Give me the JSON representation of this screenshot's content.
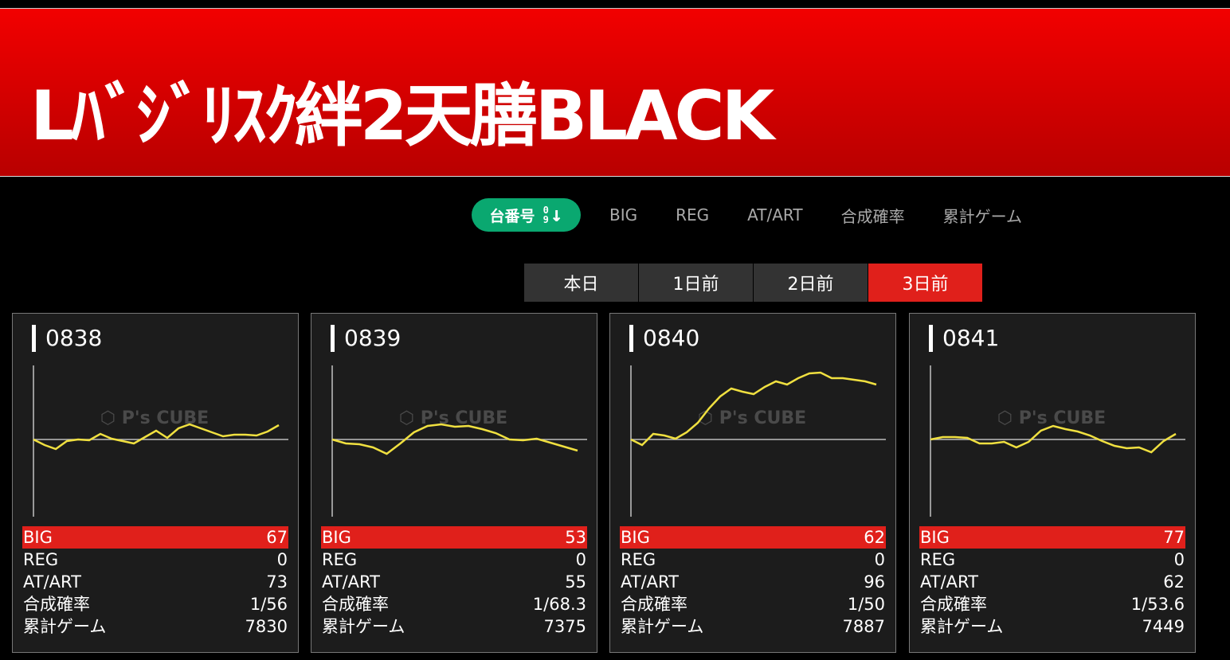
{
  "header": {
    "title": "Lﾊﾞｼﾞﾘｽｸ絆2天膳BLACK"
  },
  "sort": {
    "active_label": "台番号",
    "active_icon": "sort-0-9-down-icon",
    "icon_top": "0",
    "icon_bottom": "9",
    "items": [
      "BIG",
      "REG",
      "AT/ART",
      "合成確率",
      "累計ゲーム"
    ]
  },
  "days": [
    {
      "label": "本日",
      "active": false
    },
    {
      "label": "1日前",
      "active": false
    },
    {
      "label": "2日前",
      "active": false
    },
    {
      "label": "3日前",
      "active": true
    }
  ],
  "colors": {
    "accent": "#e0201b",
    "sort_active": "#0aa870",
    "graph_line": "#f0e040"
  },
  "watermark": "P's CUBE",
  "stat_labels": [
    "BIG",
    "REG",
    "AT/ART",
    "合成確率",
    "累計ゲーム"
  ],
  "machines": [
    {
      "number": "0838",
      "stats": [
        "67",
        "0",
        "73",
        "1/56",
        "7830"
      ],
      "chart_data": {
        "type": "line",
        "values": [
          0,
          -7,
          -12,
          -2,
          0,
          -1,
          7,
          1,
          -2,
          -5,
          3,
          11,
          2,
          14,
          19,
          14,
          9,
          4,
          6,
          6,
          5,
          10,
          18
        ]
      }
    },
    {
      "number": "0839",
      "stats": [
        "53",
        "0",
        "55",
        "1/68.3",
        "7375"
      ],
      "chart_data": {
        "type": "line",
        "values": [
          0,
          -5,
          -6,
          -10,
          -18,
          -5,
          9,
          17,
          19,
          16,
          17,
          13,
          8,
          0,
          -1,
          1,
          -4,
          -9,
          -14
        ]
      }
    },
    {
      "number": "0840",
      "stats": [
        "62",
        "0",
        "96",
        "1/50",
        "7887"
      ],
      "chart_data": {
        "type": "line",
        "values": [
          0,
          -7,
          7,
          5,
          1,
          9,
          21,
          39,
          54,
          64,
          60,
          57,
          66,
          73,
          69,
          77,
          83,
          84,
          77,
          77,
          75,
          73,
          69
        ]
      }
    },
    {
      "number": "0841",
      "stats": [
        "77",
        "0",
        "62",
        "1/53.6",
        "7449"
      ],
      "chart_data": {
        "type": "line",
        "values": [
          0,
          3,
          3,
          2,
          -5,
          -5,
          -3,
          -10,
          -3,
          11,
          17,
          13,
          10,
          5,
          -2,
          -8,
          -11,
          -10,
          -16,
          -2,
          7
        ]
      }
    }
  ]
}
